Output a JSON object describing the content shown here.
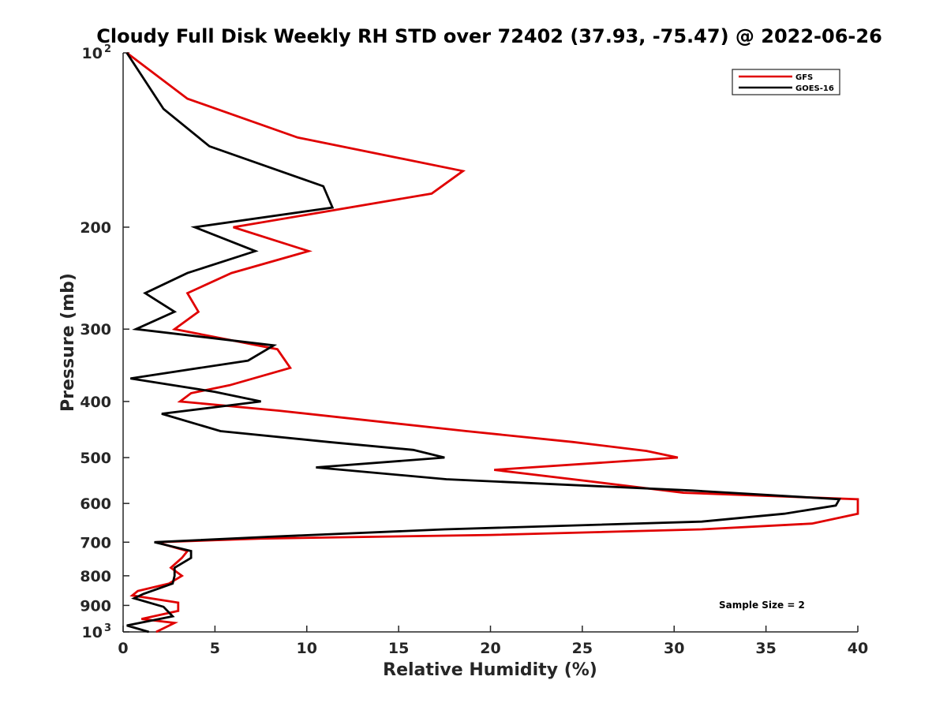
{
  "chart_data": {
    "type": "line",
    "title": "Cloudy Full Disk Weekly RH STD over 72402 (37.93, -75.47) @ 2022-06-26",
    "xlabel": "Relative Humidity (%)",
    "ylabel": "Pressure (mb)",
    "xlim": [
      0,
      40
    ],
    "ylim": [
      100,
      1000
    ],
    "yscale": "log",
    "y_reversed": true,
    "grid": false,
    "legend_position": "top-right",
    "x_ticks": [
      "0",
      "5",
      "10",
      "15",
      "20",
      "25",
      "30",
      "35",
      "40"
    ],
    "y_ticks": [
      {
        "value": 100,
        "base": "10",
        "sup": "2"
      },
      {
        "value": 200,
        "label": "200"
      },
      {
        "value": 300,
        "label": "300"
      },
      {
        "value": 400,
        "label": "400"
      },
      {
        "value": 500,
        "label": "500"
      },
      {
        "value": 600,
        "label": "600"
      },
      {
        "value": 700,
        "label": "700"
      },
      {
        "value": 800,
        "label": "800"
      },
      {
        "value": 900,
        "label": "900"
      },
      {
        "value": 1000,
        "base": "10",
        "sup": "3"
      }
    ],
    "annotation": "Sample Size = 2",
    "series": [
      {
        "name": "GFS",
        "color": "#e00000",
        "points": [
          [
            0.2,
            100
          ],
          [
            3.5,
            120
          ],
          [
            9.5,
            140
          ],
          [
            18.5,
            160
          ],
          [
            16.8,
            175
          ],
          [
            6.0,
            200
          ],
          [
            10.1,
            220
          ],
          [
            5.9,
            240
          ],
          [
            3.5,
            260
          ],
          [
            4.1,
            280
          ],
          [
            2.8,
            300
          ],
          [
            8.4,
            325
          ],
          [
            9.1,
            350
          ],
          [
            5.8,
            375
          ],
          [
            3.7,
            387
          ],
          [
            3.1,
            400
          ],
          [
            8.5,
            415
          ],
          [
            18.7,
            450
          ],
          [
            24.5,
            470
          ],
          [
            28.5,
            487
          ],
          [
            30.2,
            500
          ],
          [
            20.2,
            525
          ],
          [
            25.5,
            550
          ],
          [
            30.5,
            575
          ],
          [
            40.0,
            590
          ],
          [
            40.0,
            625
          ],
          [
            37.5,
            650
          ],
          [
            31.5,
            665
          ],
          [
            20.0,
            680
          ],
          [
            7.5,
            690
          ],
          [
            1.8,
            700
          ],
          [
            3.5,
            725
          ],
          [
            3.2,
            745
          ],
          [
            2.6,
            775
          ],
          [
            3.2,
            800
          ],
          [
            2.5,
            825
          ],
          [
            0.8,
            850
          ],
          [
            0.5,
            865
          ],
          [
            3.0,
            890
          ],
          [
            3.0,
            920
          ],
          [
            1.0,
            950
          ],
          [
            2.8,
            965
          ],
          [
            1.8,
            1000
          ]
        ]
      },
      {
        "name": "GOES-16",
        "color": "#000000",
        "points": [
          [
            0.2,
            100
          ],
          [
            2.2,
            125
          ],
          [
            4.7,
            145
          ],
          [
            10.9,
            170
          ],
          [
            11.4,
            185
          ],
          [
            3.9,
            200
          ],
          [
            7.2,
            220
          ],
          [
            3.5,
            240
          ],
          [
            1.2,
            260
          ],
          [
            2.8,
            280
          ],
          [
            0.7,
            300
          ],
          [
            8.2,
            320
          ],
          [
            6.8,
            340
          ],
          [
            0.4,
            365
          ],
          [
            5.0,
            385
          ],
          [
            7.5,
            400
          ],
          [
            2.1,
            420
          ],
          [
            5.3,
            450
          ],
          [
            11.2,
            470
          ],
          [
            15.8,
            485
          ],
          [
            17.5,
            500
          ],
          [
            10.5,
            520
          ],
          [
            17.6,
            545
          ],
          [
            31.0,
            570
          ],
          [
            39.0,
            590
          ],
          [
            38.8,
            605
          ],
          [
            36.0,
            625
          ],
          [
            31.5,
            645
          ],
          [
            17.5,
            665
          ],
          [
            8.0,
            685
          ],
          [
            1.7,
            700
          ],
          [
            3.7,
            725
          ],
          [
            3.7,
            745
          ],
          [
            2.8,
            775
          ],
          [
            2.8,
            800
          ],
          [
            2.7,
            825
          ],
          [
            1.1,
            860
          ],
          [
            0.6,
            875
          ],
          [
            2.2,
            905
          ],
          [
            2.7,
            940
          ],
          [
            0.2,
            975
          ],
          [
            1.4,
            1000
          ]
        ]
      }
    ]
  }
}
